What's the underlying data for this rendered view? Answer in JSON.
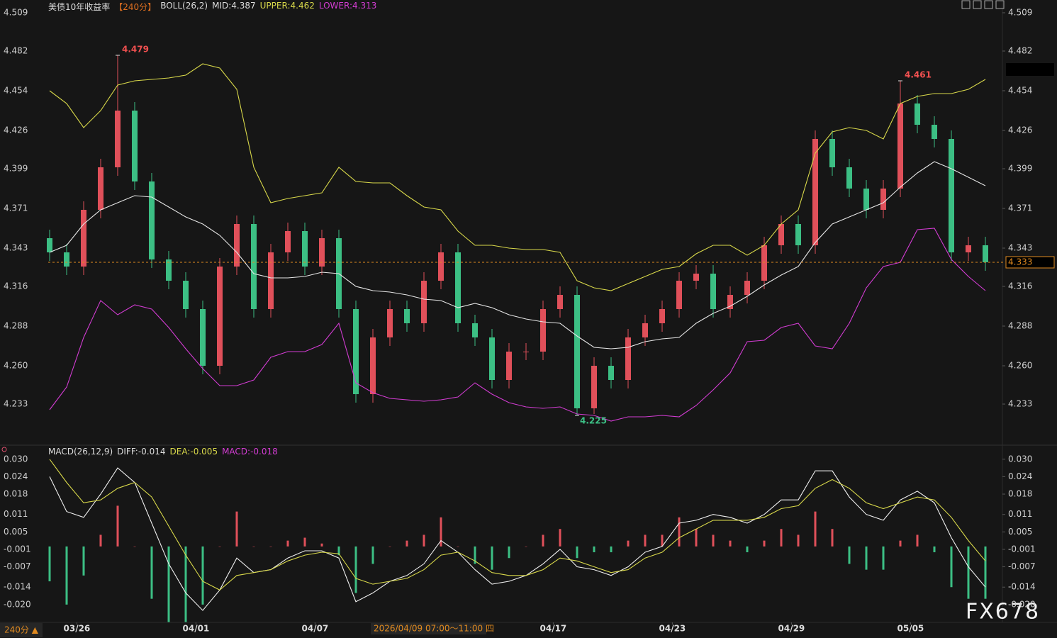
{
  "header": {
    "title": "美债10年收益率",
    "period": "【240分】",
    "boll": "BOLL(26,2)",
    "mid": "MID:4.387",
    "upper": "UPPER:4.462",
    "lower": "LOWER:4.313",
    "macd": "MACD(26,12,9)",
    "diff": "DIFF:-0.014",
    "dea": "DEA:-0.005",
    "macd_value": "MACD:-0.018",
    "period_button": "240分 ▲",
    "crosshair_time": "2026/04/09 07:00～11:00 四",
    "watermark": "FX678"
  },
  "chart_data": [
    {
      "type": "candlestick",
      "up_color": "#e0505a",
      "down_color": "#3cbf84",
      "open": [
        4.35,
        4.34,
        4.33,
        4.37,
        4.4,
        4.44,
        4.39,
        4.335,
        4.32,
        4.3,
        4.26,
        4.33,
        4.36,
        4.3,
        4.34,
        4.355,
        4.33,
        4.35,
        4.3,
        4.24,
        4.28,
        4.3,
        4.29,
        4.32,
        4.34,
        4.29,
        4.28,
        4.25,
        4.27,
        4.27,
        4.3,
        4.31,
        4.23,
        4.26,
        4.25,
        4.28,
        4.29,
        4.3,
        4.32,
        4.325,
        4.3,
        4.31,
        4.32,
        4.345,
        4.36,
        4.345,
        4.42,
        4.4,
        4.385,
        4.37,
        4.385,
        4.445,
        4.43,
        4.42,
        4.34,
        4.345
      ],
      "high": [
        4.356,
        4.346,
        4.376,
        4.406,
        4.479,
        4.446,
        4.396,
        4.341,
        4.326,
        4.306,
        4.336,
        4.366,
        4.366,
        4.346,
        4.361,
        4.361,
        4.356,
        4.356,
        4.306,
        4.286,
        4.306,
        4.306,
        4.326,
        4.346,
        4.346,
        4.296,
        4.286,
        4.276,
        4.276,
        4.306,
        4.316,
        4.316,
        4.266,
        4.266,
        4.286,
        4.296,
        4.306,
        4.326,
        4.331,
        4.331,
        4.316,
        4.326,
        4.351,
        4.366,
        4.366,
        4.426,
        4.426,
        4.406,
        4.391,
        4.391,
        4.461,
        4.451,
        4.436,
        4.426,
        4.351,
        4.351
      ],
      "low": [
        4.334,
        4.324,
        4.324,
        4.364,
        4.394,
        4.384,
        4.329,
        4.314,
        4.294,
        4.254,
        4.254,
        4.324,
        4.294,
        4.294,
        4.334,
        4.324,
        4.324,
        4.294,
        4.234,
        4.234,
        4.274,
        4.284,
        4.284,
        4.314,
        4.284,
        4.274,
        4.244,
        4.244,
        4.264,
        4.264,
        4.294,
        4.225,
        4.226,
        4.244,
        4.244,
        4.274,
        4.284,
        4.294,
        4.314,
        4.294,
        4.294,
        4.304,
        4.314,
        4.339,
        4.339,
        4.339,
        4.394,
        4.379,
        4.364,
        4.364,
        4.379,
        4.424,
        4.414,
        4.334,
        4.334,
        4.327
      ],
      "close": [
        4.34,
        4.33,
        4.37,
        4.4,
        4.44,
        4.39,
        4.335,
        4.32,
        4.3,
        4.26,
        4.33,
        4.36,
        4.3,
        4.34,
        4.355,
        4.33,
        4.35,
        4.3,
        4.24,
        4.28,
        4.3,
        4.29,
        4.32,
        4.34,
        4.29,
        4.28,
        4.25,
        4.27,
        4.27,
        4.3,
        4.31,
        4.23,
        4.26,
        4.25,
        4.28,
        4.29,
        4.3,
        4.32,
        4.325,
        4.3,
        4.31,
        4.32,
        4.345,
        4.36,
        4.345,
        4.42,
        4.4,
        4.385,
        4.37,
        4.385,
        4.445,
        4.43,
        4.42,
        4.34,
        4.345,
        4.333
      ],
      "series": [
        {
          "color": "#d8d84a",
          "values": [
            4.454,
            4.445,
            4.428,
            4.44,
            4.458,
            4.461,
            4.462,
            4.463,
            4.465,
            4.473,
            4.47,
            4.455,
            4.4,
            4.375,
            4.378,
            4.38,
            4.382,
            4.4,
            4.39,
            4.389,
            4.389,
            4.38,
            4.372,
            4.37,
            4.355,
            4.345,
            4.345,
            4.343,
            4.342,
            4.342,
            4.34,
            4.32,
            4.315,
            4.313,
            4.318,
            4.323,
            4.328,
            4.33,
            4.339,
            4.345,
            4.345,
            4.338,
            4.345,
            4.36,
            4.37,
            4.41,
            4.425,
            4.428,
            4.426,
            4.42,
            4.445,
            4.45,
            4.452,
            4.452,
            4.455,
            4.462
          ]
        },
        {
          "color": "#e6e6e6",
          "values": [
            4.34,
            4.345,
            4.36,
            4.37,
            4.375,
            4.38,
            4.379,
            4.372,
            4.365,
            4.36,
            4.352,
            4.34,
            4.325,
            4.322,
            4.322,
            4.323,
            4.326,
            4.325,
            4.316,
            4.313,
            4.312,
            4.31,
            4.307,
            4.306,
            4.301,
            4.304,
            4.301,
            4.296,
            4.293,
            4.291,
            4.29,
            4.281,
            4.273,
            4.272,
            4.273,
            4.277,
            4.279,
            4.28,
            4.29,
            4.297,
            4.302,
            4.309,
            4.317,
            4.324,
            4.33,
            4.347,
            4.36,
            4.365,
            4.37,
            4.375,
            4.386,
            4.396,
            4.404,
            4.399,
            4.393,
            4.387
          ]
        },
        {
          "color": "#d23cd2",
          "values": [
            4.229,
            4.245,
            4.28,
            4.306,
            4.296,
            4.303,
            4.3,
            4.287,
            4.272,
            4.258,
            4.246,
            4.246,
            4.25,
            4.266,
            4.27,
            4.27,
            4.275,
            4.29,
            4.248,
            4.241,
            4.237,
            4.236,
            4.235,
            4.236,
            4.238,
            4.248,
            4.24,
            4.234,
            4.231,
            4.23,
            4.231,
            4.226,
            4.225,
            4.221,
            4.224,
            4.224,
            4.225,
            4.224,
            4.232,
            4.243,
            4.255,
            4.277,
            4.278,
            4.287,
            4.29,
            4.274,
            4.272,
            4.29,
            4.315,
            4.33,
            4.333,
            4.356,
            4.357,
            4.335,
            4.323,
            4.313
          ]
        }
      ],
      "annotations": [
        {
          "x": 4,
          "y": 4.479,
          "color": "#f05050"
        },
        {
          "x": 50,
          "y": 4.461,
          "color": "#f05050"
        },
        {
          "x": 31,
          "y": 4.225,
          "color": "#3cbf84"
        }
      ],
      "last_price": 4.333,
      "last_price_color": "#e08a20",
      "ylim": [
        4.218,
        4.518
      ],
      "yticks": [
        4.509,
        4.482,
        4.454,
        4.426,
        4.399,
        4.371,
        4.343,
        4.316,
        4.288,
        {
          "value": 4.26,
          "label": "4.260"
        },
        4.233
      ]
    },
    {
      "type": "macd",
      "up_color": "#e0505a",
      "down_color": "#3cbf84",
      "series": [
        {
          "color": "#f0f0f0",
          "values": [
            0.024,
            0.012,
            0.01,
            0.018,
            0.027,
            0.022,
            0.008,
            -0.006,
            -0.016,
            -0.022,
            -0.015,
            -0.004,
            -0.009,
            -0.008,
            -0.004,
            -0.0015,
            -0.0015,
            -0.004,
            -0.019,
            -0.016,
            -0.012,
            -0.01,
            -0.006,
            0.002,
            -0.002,
            -0.008,
            -0.013,
            -0.012,
            -0.01,
            -0.006,
            -0.001,
            -0.007,
            -0.008,
            -0.01,
            -0.007,
            -0.002,
            0.0,
            0.008,
            0.009,
            0.011,
            0.01,
            0.008,
            0.011,
            0.016,
            0.016,
            0.026,
            0.026,
            0.017,
            0.011,
            0.009,
            0.016,
            0.019,
            0.015,
            0.003,
            -0.007,
            -0.014
          ]
        },
        {
          "color": "#d8d84a",
          "values": [
            0.03,
            0.022,
            0.015,
            0.016,
            0.02,
            0.022,
            0.017,
            0.007,
            -0.003,
            -0.012,
            -0.015,
            -0.01,
            -0.009,
            -0.008,
            -0.005,
            -0.003,
            -0.002,
            -0.0025,
            -0.011,
            -0.013,
            -0.012,
            -0.011,
            -0.008,
            -0.003,
            -0.002,
            -0.005,
            -0.009,
            -0.01,
            -0.01,
            -0.008,
            -0.004,
            -0.005,
            -0.007,
            -0.009,
            -0.008,
            -0.004,
            -0.002,
            0.003,
            0.006,
            0.009,
            0.009,
            0.009,
            0.01,
            0.013,
            0.014,
            0.02,
            0.023,
            0.02,
            0.015,
            0.013,
            0.015,
            0.017,
            0.016,
            0.01,
            0.002,
            -0.005
          ]
        }
      ],
      "histogram": [
        -0.012,
        -0.02,
        -0.01,
        0.004,
        0.014,
        0,
        -0.018,
        -0.026,
        -0.026,
        -0.02,
        0,
        0.012,
        0,
        0,
        0.002,
        0.003,
        0.001,
        -0.003,
        -0.016,
        -0.006,
        0,
        0.002,
        0.004,
        0.01,
        0,
        -0.006,
        -0.008,
        -0.004,
        0,
        0.004,
        0.006,
        -0.004,
        -0.002,
        -0.002,
        0.002,
        0.004,
        0.004,
        0.01,
        0.006,
        0.004,
        0.002,
        -0.002,
        0.002,
        0.006,
        0.004,
        0.012,
        0.006,
        -0.006,
        -0.008,
        -0.008,
        0.002,
        0.004,
        -0.002,
        -0.014,
        -0.018,
        -0.018
      ],
      "ylim": [
        -0.0254,
        0.0319
      ],
      "yticks": [
        {
          "value": 0.03,
          "label": "0.030"
        },
        0.024,
        0.018,
        0.011,
        0.005,
        -0.001,
        -0.007,
        -0.014,
        {
          "value": -0.02,
          "label": "-0.020"
        }
      ],
      "xlim": [
        0,
        55
      ],
      "xticks": [
        {
          "value": 1.6,
          "label": "03/26"
        },
        {
          "value": 8.6,
          "label": "04/01"
        },
        {
          "value": 15.6,
          "label": "04/07"
        },
        {
          "value": 29.6,
          "label": "04/17"
        },
        {
          "value": 36.6,
          "label": "04/23"
        },
        {
          "value": 43.6,
          "label": "04/29"
        },
        {
          "value": 50.6,
          "label": "05/05"
        }
      ]
    }
  ]
}
